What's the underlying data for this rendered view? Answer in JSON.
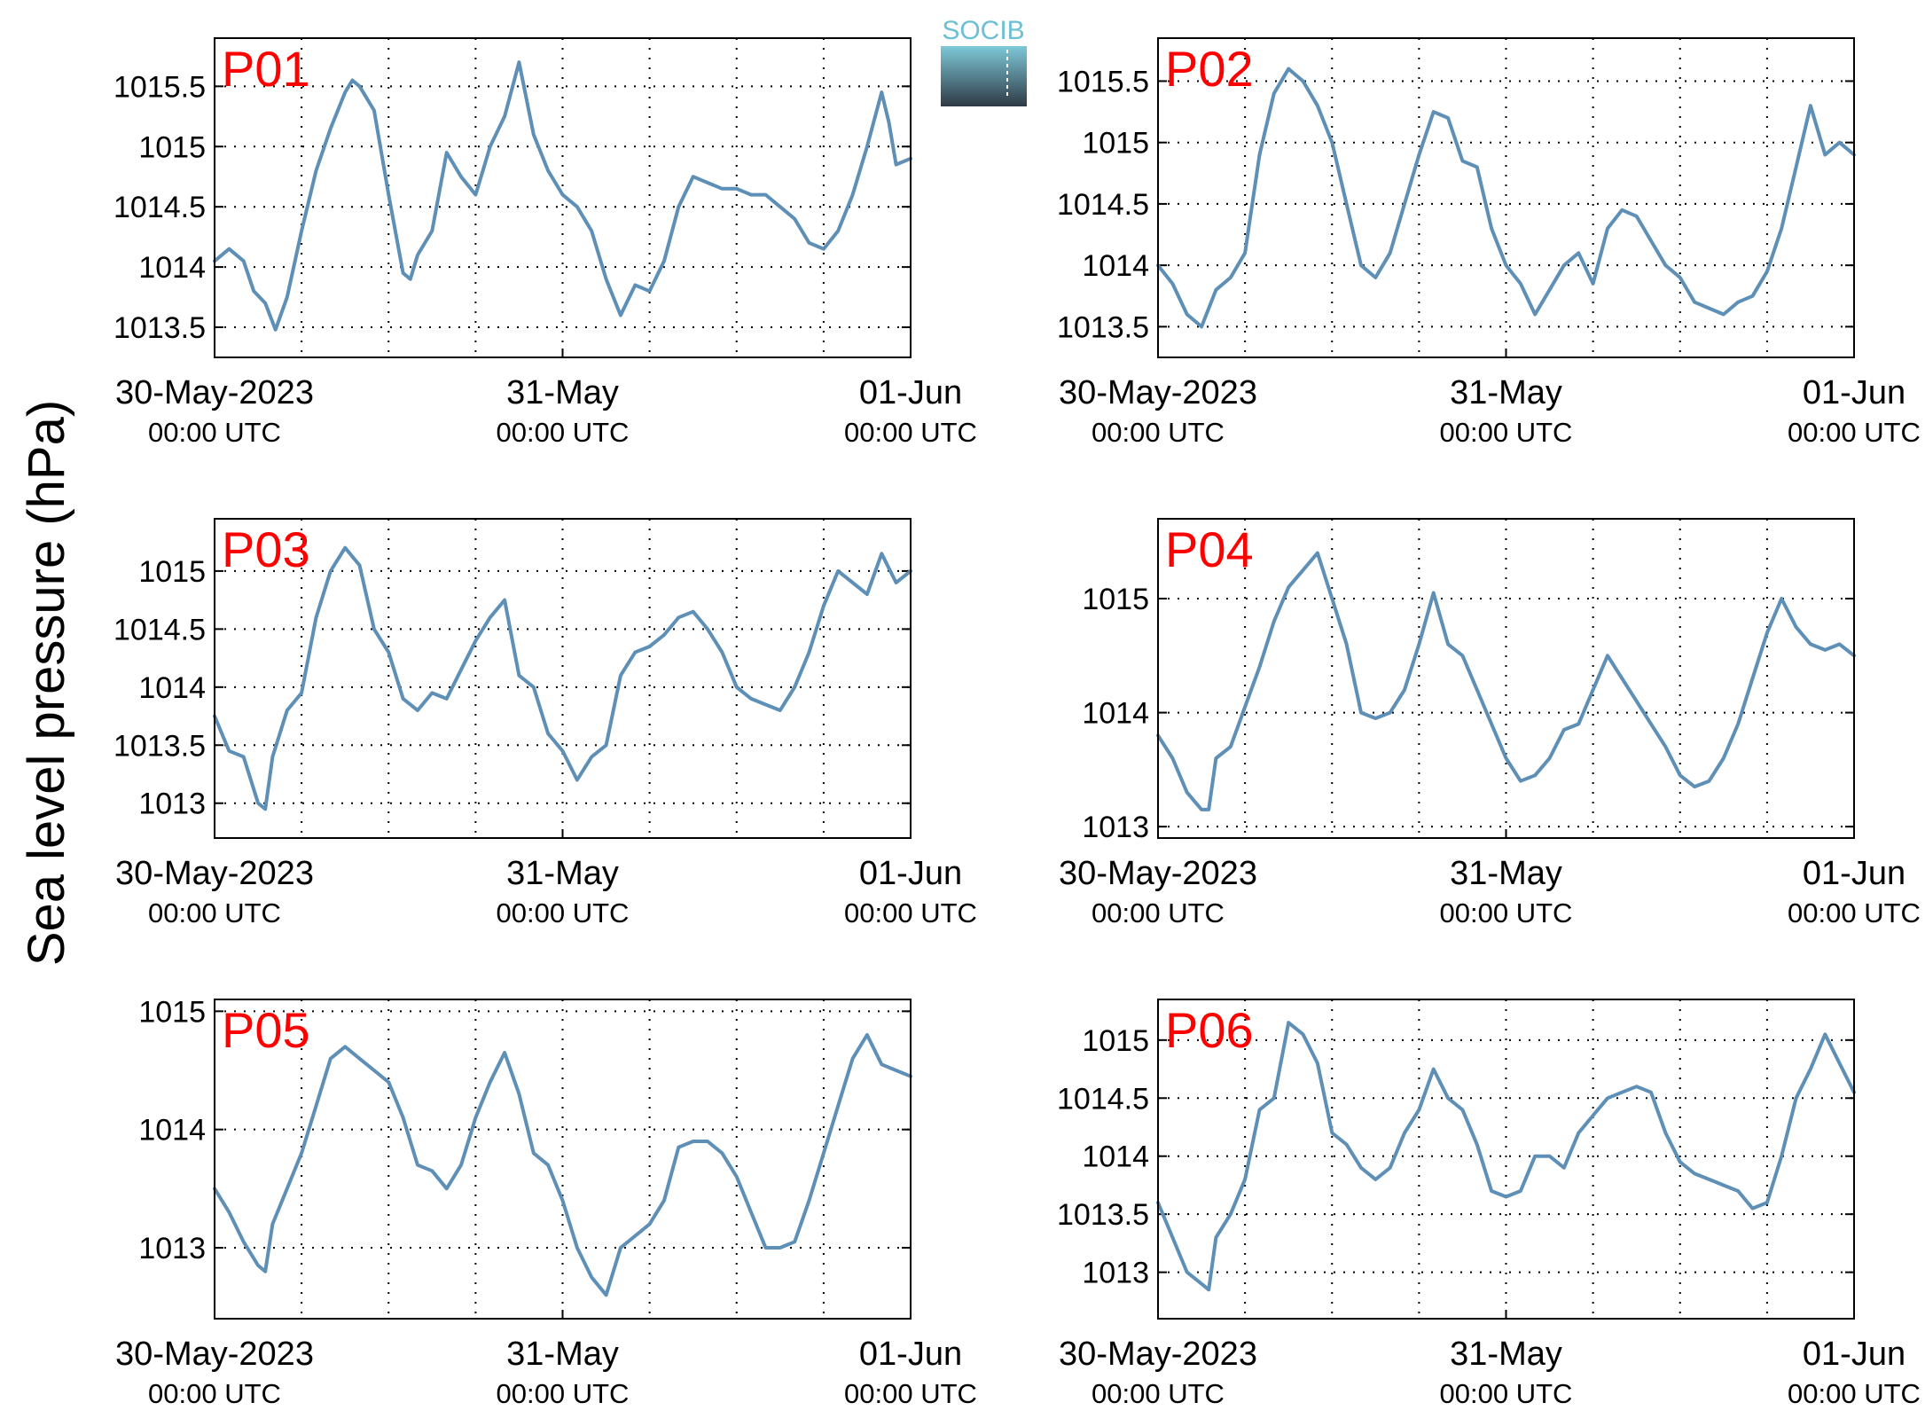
{
  "figure": {
    "ylabel": "Sea level pressure (hPa)",
    "logo_text": "SOCIB",
    "line_color": "#5e8fb6",
    "label_color": "#ff0000",
    "time_unit": "hours since 30-May-2023 00:00 UTC"
  },
  "x_ticks": [
    {
      "x": 0,
      "date": "30-May-2023",
      "time": "00:00 UTC"
    },
    {
      "x": 24,
      "date": "31-May",
      "time": "00:00 UTC"
    },
    {
      "x": 48,
      "date": "01-Jun",
      "time": "00:00 UTC"
    }
  ],
  "chart_data": [
    {
      "type": "line",
      "label": "P01",
      "xlim": [
        0,
        48
      ],
      "ylim": [
        1013.25,
        1015.9
      ],
      "yticks": [
        1013.5,
        1014,
        1014.5,
        1015,
        1015.5
      ],
      "ytick_labels": [
        "1013.5",
        "1014",
        "1014.5",
        "1015",
        "1015.5"
      ],
      "x": [
        0,
        1,
        2,
        2.7,
        3.5,
        4.2,
        5,
        6,
        7,
        8,
        9,
        9.5,
        10,
        11,
        12,
        13,
        13.5,
        14,
        15,
        16,
        17,
        18,
        18.5,
        19,
        20,
        21,
        22,
        23,
        24,
        25,
        26,
        27,
        28,
        29,
        30,
        31,
        32,
        33,
        34,
        35,
        36,
        37,
        38,
        39,
        40,
        41,
        42,
        43,
        44,
        45,
        46,
        46.5,
        47,
        48
      ],
      "y": [
        1014.05,
        1014.15,
        1014.05,
        1013.8,
        1013.7,
        1013.48,
        1013.75,
        1014.3,
        1014.8,
        1015.15,
        1015.45,
        1015.55,
        1015.5,
        1015.3,
        1014.6,
        1013.95,
        1013.9,
        1014.1,
        1014.3,
        1014.95,
        1014.75,
        1014.6,
        1014.8,
        1015.0,
        1015.25,
        1015.7,
        1015.1,
        1014.8,
        1014.6,
        1014.5,
        1014.3,
        1013.9,
        1013.6,
        1013.85,
        1013.8,
        1014.05,
        1014.5,
        1014.75,
        1014.7,
        1014.65,
        1014.65,
        1014.6,
        1014.6,
        1014.5,
        1014.4,
        1014.2,
        1014.15,
        1014.3,
        1014.6,
        1015.0,
        1015.45,
        1015.2,
        1014.85,
        1014.9
      ]
    },
    {
      "type": "line",
      "label": "P02",
      "xlim": [
        0,
        48
      ],
      "ylim": [
        1013.25,
        1015.85
      ],
      "yticks": [
        1013.5,
        1014,
        1014.5,
        1015,
        1015.5
      ],
      "ytick_labels": [
        "1013.5",
        "1014",
        "1014.5",
        "1015",
        "1015.5"
      ],
      "x": [
        0,
        1,
        2,
        3,
        4,
        5,
        6,
        7,
        8,
        9,
        10,
        11,
        12,
        13,
        14,
        15,
        16,
        17,
        18,
        19,
        20,
        21,
        22,
        23,
        24,
        25,
        26,
        27,
        28,
        29,
        30,
        31,
        32,
        33,
        34,
        35,
        36,
        37,
        38,
        39,
        40,
        41,
        42,
        43,
        44,
        45,
        46,
        47,
        48
      ],
      "y": [
        1014.0,
        1013.85,
        1013.6,
        1013.5,
        1013.8,
        1013.9,
        1014.1,
        1014.9,
        1015.4,
        1015.6,
        1015.5,
        1015.3,
        1015.0,
        1014.5,
        1014.0,
        1013.9,
        1014.1,
        1014.5,
        1014.9,
        1015.25,
        1015.2,
        1014.85,
        1014.8,
        1014.3,
        1014.0,
        1013.85,
        1013.6,
        1013.8,
        1014.0,
        1014.1,
        1013.85,
        1014.3,
        1014.45,
        1014.4,
        1014.2,
        1014.0,
        1013.9,
        1013.7,
        1013.65,
        1013.6,
        1013.7,
        1013.75,
        1013.95,
        1014.3,
        1014.8,
        1015.3,
        1014.9,
        1015.0,
        1014.9
      ]
    },
    {
      "type": "line",
      "label": "P03",
      "xlim": [
        0,
        48
      ],
      "ylim": [
        1012.7,
        1015.45
      ],
      "yticks": [
        1013,
        1013.5,
        1014,
        1014.5,
        1015
      ],
      "ytick_labels": [
        "1013",
        "1013.5",
        "1014",
        "1014.5",
        "1015"
      ],
      "x": [
        0,
        1,
        2,
        3,
        3.5,
        4,
        5,
        6,
        7,
        8,
        9,
        10,
        11,
        12,
        13,
        14,
        15,
        16,
        17,
        18,
        19,
        20,
        21,
        22,
        23,
        24,
        25,
        26,
        27,
        28,
        29,
        30,
        31,
        32,
        33,
        34,
        35,
        36,
        37,
        38,
        39,
        40,
        41,
        42,
        43,
        44,
        45,
        46,
        47,
        48
      ],
      "y": [
        1013.75,
        1013.45,
        1013.4,
        1013.0,
        1012.95,
        1013.4,
        1013.8,
        1013.95,
        1014.6,
        1015.0,
        1015.2,
        1015.05,
        1014.5,
        1014.3,
        1013.9,
        1013.8,
        1013.95,
        1013.9,
        1014.15,
        1014.4,
        1014.6,
        1014.75,
        1014.1,
        1014.0,
        1013.6,
        1013.45,
        1013.2,
        1013.4,
        1013.5,
        1014.1,
        1014.3,
        1014.35,
        1014.45,
        1014.6,
        1014.65,
        1014.5,
        1014.3,
        1014.0,
        1013.9,
        1013.85,
        1013.8,
        1014.0,
        1014.3,
        1014.7,
        1015.0,
        1014.9,
        1014.8,
        1015.15,
        1014.9,
        1015.0
      ]
    },
    {
      "type": "line",
      "label": "P04",
      "xlim": [
        0,
        48
      ],
      "ylim": [
        1012.9,
        1015.7
      ],
      "yticks": [
        1013,
        1014,
        1015
      ],
      "ytick_labels": [
        "1013",
        "1014",
        "1015"
      ],
      "x": [
        0,
        1,
        2,
        3,
        3.5,
        4,
        5,
        6,
        7,
        8,
        9,
        10,
        11,
        12,
        13,
        14,
        15,
        16,
        17,
        18,
        19,
        20,
        21,
        22,
        23,
        24,
        25,
        26,
        27,
        28,
        29,
        30,
        31,
        32,
        33,
        34,
        35,
        36,
        37,
        38,
        39,
        40,
        41,
        42,
        43,
        44,
        45,
        46,
        47,
        48
      ],
      "y": [
        1013.8,
        1013.6,
        1013.3,
        1013.15,
        1013.15,
        1013.6,
        1013.7,
        1014.05,
        1014.4,
        1014.8,
        1015.1,
        1015.25,
        1015.4,
        1015.0,
        1014.6,
        1014.0,
        1013.95,
        1014.0,
        1014.2,
        1014.6,
        1015.05,
        1014.6,
        1014.5,
        1014.2,
        1013.9,
        1013.6,
        1013.4,
        1013.45,
        1013.6,
        1013.85,
        1013.9,
        1014.2,
        1014.5,
        1014.3,
        1014.1,
        1013.9,
        1013.7,
        1013.45,
        1013.35,
        1013.4,
        1013.6,
        1013.9,
        1014.3,
        1014.7,
        1015.0,
        1014.75,
        1014.6,
        1014.55,
        1014.6,
        1014.5
      ]
    },
    {
      "type": "line",
      "label": "P05",
      "xlim": [
        0,
        48
      ],
      "ylim": [
        1012.4,
        1015.1
      ],
      "yticks": [
        1013,
        1014,
        1015
      ],
      "ytick_labels": [
        "1013",
        "1014",
        "1015"
      ],
      "x": [
        0,
        1,
        2,
        3,
        3.5,
        4,
        5,
        6,
        7,
        8,
        9,
        10,
        11,
        12,
        13,
        14,
        15,
        16,
        17,
        18,
        19,
        20,
        21,
        22,
        23,
        24,
        25,
        26,
        27,
        28,
        29,
        30,
        31,
        32,
        33,
        34,
        35,
        36,
        37,
        38,
        39,
        40,
        41,
        42,
        43,
        44,
        45,
        46,
        47,
        48
      ],
      "y": [
        1013.5,
        1013.3,
        1013.05,
        1012.85,
        1012.8,
        1013.2,
        1013.5,
        1013.8,
        1014.2,
        1014.6,
        1014.7,
        1014.6,
        1014.5,
        1014.4,
        1014.1,
        1013.7,
        1013.65,
        1013.5,
        1013.7,
        1014.1,
        1014.4,
        1014.65,
        1014.3,
        1013.8,
        1013.7,
        1013.4,
        1013.0,
        1012.75,
        1012.6,
        1013.0,
        1013.1,
        1013.2,
        1013.4,
        1013.85,
        1013.9,
        1013.9,
        1013.8,
        1013.6,
        1013.3,
        1013.0,
        1013.0,
        1013.05,
        1013.4,
        1013.8,
        1014.2,
        1014.6,
        1014.8,
        1014.55,
        1014.5,
        1014.45
      ]
    },
    {
      "type": "line",
      "label": "P06",
      "xlim": [
        0,
        48
      ],
      "ylim": [
        1012.6,
        1015.35
      ],
      "yticks": [
        1013,
        1013.5,
        1014,
        1014.5,
        1015
      ],
      "ytick_labels": [
        "1013",
        "1013.5",
        "1014",
        "1014.5",
        "1015"
      ],
      "x": [
        0,
        1,
        2,
        3,
        3.5,
        4,
        5,
        6,
        7,
        8,
        9,
        10,
        11,
        12,
        13,
        14,
        15,
        16,
        17,
        18,
        19,
        20,
        21,
        22,
        23,
        24,
        25,
        26,
        27,
        28,
        29,
        30,
        31,
        32,
        33,
        34,
        35,
        36,
        37,
        38,
        39,
        40,
        41,
        42,
        43,
        44,
        45,
        46,
        47,
        48
      ],
      "y": [
        1013.6,
        1013.3,
        1013.0,
        1012.9,
        1012.85,
        1013.3,
        1013.5,
        1013.8,
        1014.4,
        1014.5,
        1015.15,
        1015.05,
        1014.8,
        1014.2,
        1014.1,
        1013.9,
        1013.8,
        1013.9,
        1014.2,
        1014.4,
        1014.75,
        1014.5,
        1014.4,
        1014.1,
        1013.7,
        1013.65,
        1013.7,
        1014.0,
        1014.0,
        1013.9,
        1014.2,
        1014.35,
        1014.5,
        1014.55,
        1014.6,
        1014.55,
        1014.2,
        1013.95,
        1013.85,
        1013.8,
        1013.75,
        1013.7,
        1013.55,
        1013.6,
        1014.0,
        1014.5,
        1014.75,
        1015.05,
        1014.8,
        1014.55
      ]
    }
  ]
}
